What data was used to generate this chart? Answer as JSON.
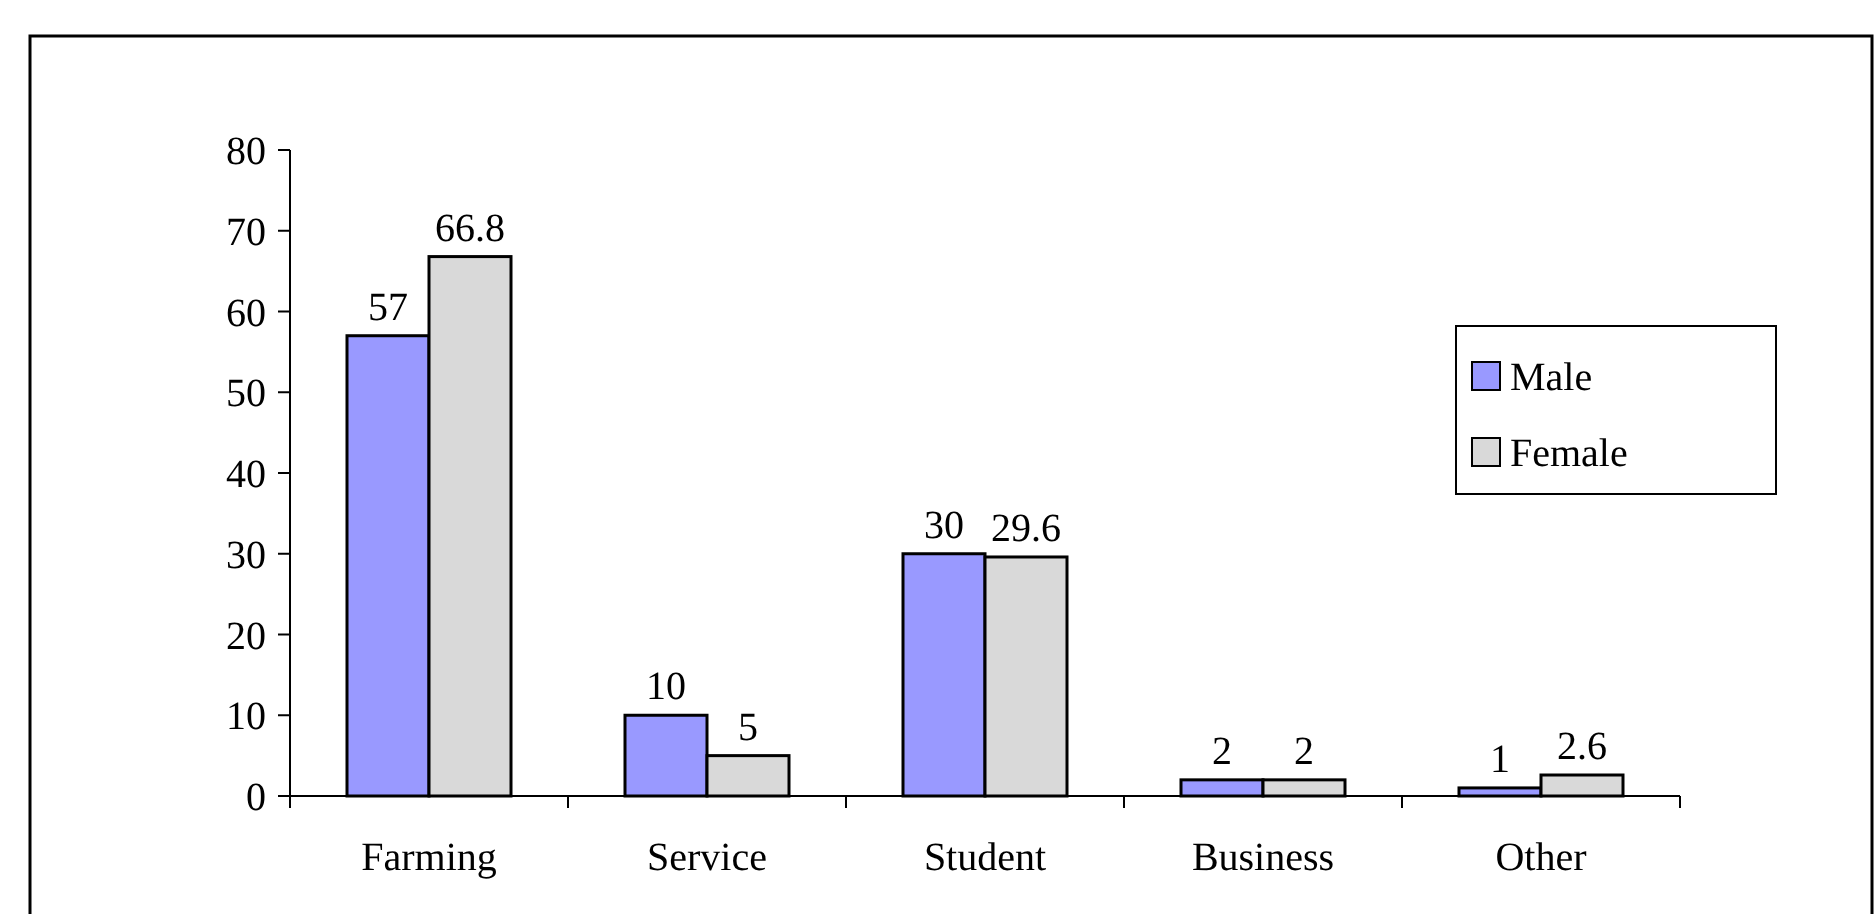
{
  "chart_data": {
    "type": "bar",
    "categories": [
      "Farming",
      "Service",
      "Student",
      "Business",
      "Other"
    ],
    "series": [
      {
        "name": "Male",
        "color": "#9999ff",
        "values": [
          57,
          10,
          30,
          2,
          1
        ]
      },
      {
        "name": "Female",
        "color": "#d9d9d9",
        "values": [
          66.8,
          5,
          29.6,
          2,
          2.6
        ]
      }
    ],
    "ylim": [
      0,
      80
    ],
    "yticks": [
      0,
      10,
      20,
      30,
      40,
      50,
      60,
      70,
      80
    ],
    "grid": false,
    "legend": "right",
    "data_labels": true
  }
}
